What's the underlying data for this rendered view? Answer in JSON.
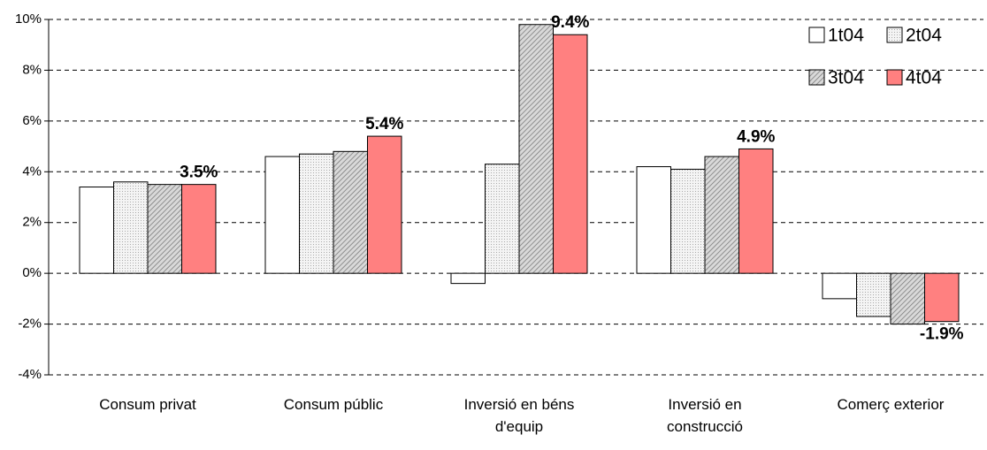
{
  "chart_data": {
    "type": "bar",
    "categories": [
      "Consum privat",
      "Consum públic",
      "Inversió en béns d'equip",
      "Inversió en construcció",
      "Comerç exterior"
    ],
    "series": [
      {
        "name": "1t04",
        "color": "#ffffff",
        "pattern": "none",
        "values": [
          3.4,
          4.6,
          -0.4,
          4.2,
          -1.0
        ]
      },
      {
        "name": "2t04",
        "color": "#ececec",
        "pattern": "dots",
        "values": [
          3.6,
          4.7,
          4.3,
          4.1,
          -1.7
        ]
      },
      {
        "name": "3t04",
        "color": "#c8c8c8",
        "pattern": "hatch",
        "values": [
          3.5,
          4.8,
          9.8,
          4.6,
          -2.0
        ]
      },
      {
        "name": "4t04",
        "color": "#ff8080",
        "pattern": "none",
        "values": [
          3.5,
          5.4,
          9.4,
          4.9,
          -1.9
        ],
        "value_labels": [
          "3.5%",
          "5.4%",
          "9.4%",
          "4.9%",
          "-1.9%"
        ]
      }
    ],
    "ylim": [
      -4,
      10
    ],
    "yticks": [
      {
        "value": -4,
        "label": "-4%"
      },
      {
        "value": -2,
        "label": "-2%"
      },
      {
        "value": 0,
        "label": "0%"
      },
      {
        "value": 2,
        "label": "2%"
      },
      {
        "value": 4,
        "label": "4%"
      },
      {
        "value": 6,
        "label": "6%"
      },
      {
        "value": 8,
        "label": "8%"
      },
      {
        "value": 10,
        "label": "10%"
      }
    ],
    "grid": true,
    "legend": "upper right"
  }
}
